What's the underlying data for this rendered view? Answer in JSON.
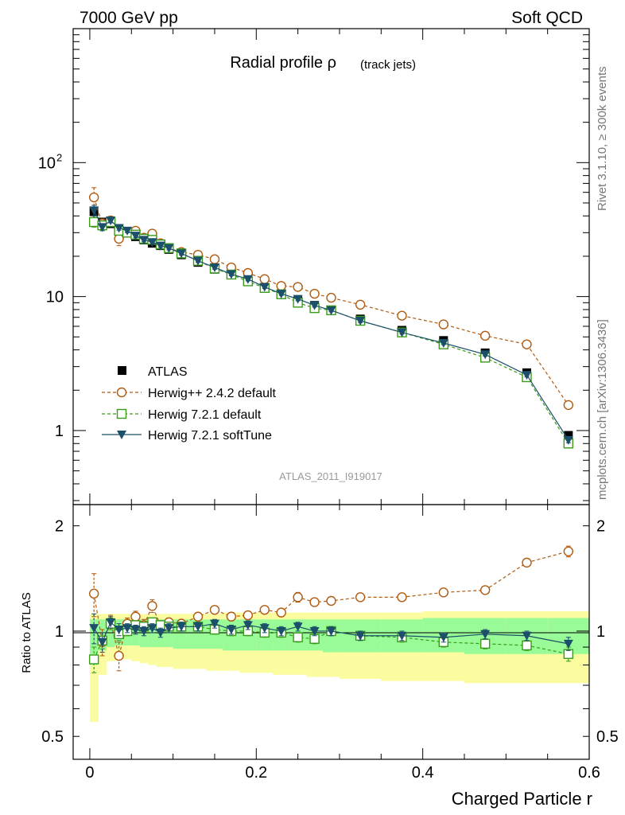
{
  "header": {
    "left_label": "7000 GeV pp",
    "right_label": "Soft QCD"
  },
  "side_labels": {
    "rivet": "Rivet 3.1.10, ≥ 300k events",
    "mcplots": "mcplots.cern.ch [arXiv:1306.3436]"
  },
  "colors": {
    "atlas": "#000000",
    "herwigpp": "#b05a10",
    "herwig721": "#3a9a1a",
    "softtune": "#1c4f6a",
    "band_outer": "#fbfba0",
    "band_inner": "#98fb98"
  },
  "chart_data": [
    {
      "type": "line",
      "panel": "main",
      "title": "Radial profile ρ",
      "title_suffix": "(track jets)",
      "analysis_label": "ATLAS_2011_I919017",
      "xlim": [
        -0.02,
        0.6
      ],
      "ylim": [
        0.28,
        1000
      ],
      "yscale": "log",
      "y_tick_labels": [
        {
          "value": 1,
          "label": "1"
        },
        {
          "value": 10,
          "label": "10"
        },
        {
          "value": 100,
          "label": "10",
          "sup": "2"
        }
      ],
      "legend": [
        "ATLAS",
        "Herwig++ 2.4.2 default",
        "Herwig 7.2.1 default",
        "Herwig 7.2.1 softTune"
      ],
      "x": [
        0.005,
        0.015,
        0.025,
        0.035,
        0.045,
        0.055,
        0.065,
        0.075,
        0.085,
        0.095,
        0.11,
        0.13,
        0.15,
        0.17,
        0.19,
        0.21,
        0.23,
        0.25,
        0.27,
        0.29,
        0.325,
        0.375,
        0.425,
        0.475,
        0.525,
        0.575
      ],
      "series": [
        {
          "name": "ATLAS",
          "style": "square",
          "values": [
            43,
            36,
            35,
            32,
            30,
            28,
            26.5,
            25,
            24,
            22.5,
            20.5,
            18,
            16,
            14.5,
            13,
            11.6,
            10.5,
            9.3,
            8.6,
            7.9,
            6.8,
            5.6,
            4.7,
            3.8,
            2.7,
            0.92
          ],
          "errors": [
            5,
            2,
            1.5,
            1.2,
            1,
            1,
            0.9,
            0.9,
            0.8,
            0.7,
            0.6,
            0.5,
            0.5,
            0.4,
            0.4,
            0.3,
            0.3,
            0.3,
            0.25,
            0.2,
            0.2,
            0.15,
            0.12,
            0.1,
            0.08,
            0.04
          ]
        },
        {
          "name": "Herwig++ 2.4.2 default",
          "style": "circle",
          "values": [
            55,
            35,
            37,
            27,
            30,
            31,
            27.5,
            29.5,
            25,
            23,
            21.5,
            20.5,
            19,
            16.5,
            15,
            13.5,
            12,
            11.8,
            10.5,
            9.8,
            8.7,
            7.2,
            6.2,
            5.1,
            4.4,
            1.55
          ],
          "errors": [
            10,
            3,
            2,
            3,
            1.5,
            1.5,
            1.2,
            1.5,
            1,
            1,
            0.8,
            0.8,
            0.7,
            0.6,
            0.5,
            0.5,
            0.5,
            0.5,
            0.4,
            0.4,
            0.3,
            0.25,
            0.2,
            0.18,
            0.15,
            0.08
          ]
        },
        {
          "name": "Herwig 7.2.1 default",
          "style": "open-square",
          "values": [
            36,
            34,
            36,
            31,
            30,
            29,
            27,
            26.5,
            24.5,
            23,
            21,
            18.5,
            16.2,
            14.6,
            13,
            11.6,
            10.4,
            9,
            8.2,
            7.9,
            6.6,
            5.4,
            4.4,
            3.5,
            2.5,
            0.8
          ],
          "errors": [
            3,
            2,
            1.5,
            1.2,
            1,
            1,
            0.9,
            0.9,
            0.8,
            0.7,
            0.6,
            0.5,
            0.5,
            0.4,
            0.4,
            0.3,
            0.3,
            0.3,
            0.25,
            0.2,
            0.2,
            0.15,
            0.12,
            0.1,
            0.08,
            0.04
          ]
        },
        {
          "name": "Herwig 7.2.1 softTune",
          "style": "triangle-down",
          "values": [
            44,
            33,
            37,
            32.5,
            31,
            28.5,
            26.5,
            25.5,
            24,
            23,
            21,
            18.5,
            16.5,
            14.7,
            13.5,
            11.8,
            10.5,
            9.6,
            8.6,
            7.9,
            6.6,
            5.4,
            4.5,
            3.7,
            2.6,
            0.85
          ],
          "errors": [
            4,
            2,
            1.5,
            1.2,
            1,
            1,
            0.9,
            0.9,
            0.8,
            0.7,
            0.6,
            0.5,
            0.5,
            0.4,
            0.4,
            0.3,
            0.3,
            0.3,
            0.25,
            0.2,
            0.2,
            0.15,
            0.12,
            0.1,
            0.08,
            0.04
          ]
        }
      ]
    },
    {
      "type": "line",
      "panel": "ratio",
      "ylabel": "Ratio to ATLAS",
      "xlabel": "Charged Particle r",
      "xlim": [
        -0.02,
        0.6
      ],
      "ylim": [
        0.43,
        2.3
      ],
      "yscale": "log",
      "y_tick_labels": [
        {
          "value": 0.5,
          "label": "0.5"
        },
        {
          "value": 1,
          "label": "1"
        },
        {
          "value": 2,
          "label": "2"
        }
      ],
      "x_tick_labels": [
        {
          "value": 0,
          "label": "0"
        },
        {
          "value": 0.2,
          "label": "0.2"
        },
        {
          "value": 0.4,
          "label": "0.4"
        },
        {
          "value": 0.6,
          "label": "0.6"
        }
      ],
      "bin_edges": [
        0,
        0.01,
        0.02,
        0.03,
        0.04,
        0.05,
        0.06,
        0.07,
        0.08,
        0.09,
        0.1,
        0.12,
        0.14,
        0.16,
        0.18,
        0.2,
        0.22,
        0.24,
        0.26,
        0.28,
        0.3,
        0.35,
        0.4,
        0.45,
        0.5,
        0.55,
        0.6
      ],
      "band_outer_lo": [
        0.55,
        0.75,
        0.82,
        0.83,
        0.83,
        0.82,
        0.81,
        0.8,
        0.79,
        0.79,
        0.78,
        0.78,
        0.77,
        0.77,
        0.76,
        0.76,
        0.75,
        0.75,
        0.74,
        0.74,
        0.73,
        0.72,
        0.72,
        0.71,
        0.71,
        0.71
      ],
      "band_outer_hi": [
        1.12,
        1.12,
        1.12,
        1.12,
        1.12,
        1.12,
        1.12,
        1.12,
        1.12,
        1.12,
        1.12,
        1.12,
        1.12,
        1.13,
        1.13,
        1.13,
        1.13,
        1.13,
        1.13,
        1.13,
        1.13,
        1.13,
        1.14,
        1.14,
        1.14,
        1.14
      ],
      "band_inner_lo": [
        0.8,
        0.88,
        0.9,
        0.91,
        0.91,
        0.91,
        0.9,
        0.9,
        0.9,
        0.9,
        0.89,
        0.89,
        0.89,
        0.88,
        0.88,
        0.88,
        0.88,
        0.88,
        0.88,
        0.87,
        0.87,
        0.87,
        0.87,
        0.86,
        0.86,
        0.86
      ],
      "band_inner_hi": [
        1.08,
        1.08,
        1.08,
        1.08,
        1.08,
        1.08,
        1.08,
        1.08,
        1.08,
        1.08,
        1.08,
        1.08,
        1.08,
        1.08,
        1.08,
        1.08,
        1.08,
        1.08,
        1.08,
        1.08,
        1.08,
        1.08,
        1.09,
        1.09,
        1.09,
        1.09
      ],
      "x": [
        0.005,
        0.015,
        0.025,
        0.035,
        0.045,
        0.055,
        0.065,
        0.075,
        0.085,
        0.095,
        0.11,
        0.13,
        0.15,
        0.17,
        0.19,
        0.21,
        0.23,
        0.25,
        0.27,
        0.29,
        0.325,
        0.375,
        0.425,
        0.475,
        0.525,
        0.575
      ],
      "series": [
        {
          "name": "Herwig++ 2.4.2 default",
          "style": "circle",
          "values": [
            1.28,
            0.93,
            1.06,
            0.85,
            1.05,
            1.1,
            1.04,
            1.18,
            1.04,
            1.06,
            1.05,
            1.1,
            1.15,
            1.1,
            1.11,
            1.15,
            1.13,
            1.25,
            1.21,
            1.22,
            1.25,
            1.25,
            1.29,
            1.31,
            1.57,
            1.69
          ],
          "errors": [
            0.18,
            0.08,
            0.05,
            0.08,
            0.04,
            0.04,
            0.04,
            0.05,
            0.03,
            0.03,
            0.03,
            0.03,
            0.03,
            0.03,
            0.03,
            0.03,
            0.03,
            0.04,
            0.03,
            0.03,
            0.03,
            0.03,
            0.03,
            0.03,
            0.04,
            0.06
          ]
        },
        {
          "name": "Herwig 7.2.1 default",
          "style": "open-square",
          "values": [
            0.83,
            0.94,
            1.05,
            0.98,
            1.0,
            1.04,
            1.03,
            1.06,
            1.04,
            1.03,
            1.03,
            1.03,
            1.01,
            1.0,
            1.0,
            0.99,
            0.99,
            0.96,
            0.95,
            1.0,
            0.97,
            0.96,
            0.93,
            0.92,
            0.91,
            0.86
          ],
          "errors": [
            0.07,
            0.05,
            0.04,
            0.04,
            0.03,
            0.03,
            0.03,
            0.03,
            0.03,
            0.03,
            0.03,
            0.03,
            0.03,
            0.03,
            0.03,
            0.03,
            0.03,
            0.03,
            0.03,
            0.03,
            0.03,
            0.03,
            0.03,
            0.03,
            0.03,
            0.04
          ]
        },
        {
          "name": "Herwig 7.2.1 softTune",
          "style": "triangle-down",
          "values": [
            1.02,
            0.93,
            1.06,
            1.01,
            1.02,
            1.01,
            1.0,
            1.02,
            0.99,
            1.02,
            1.03,
            1.03,
            1.05,
            1.01,
            1.04,
            1.02,
            1.0,
            1.03,
            1.0,
            1.0,
            0.97,
            0.97,
            0.96,
            0.98,
            0.97,
            0.92
          ],
          "errors": [
            0.1,
            0.06,
            0.04,
            0.04,
            0.03,
            0.03,
            0.03,
            0.03,
            0.03,
            0.03,
            0.03,
            0.03,
            0.03,
            0.03,
            0.03,
            0.03,
            0.03,
            0.03,
            0.03,
            0.03,
            0.03,
            0.03,
            0.03,
            0.03,
            0.03,
            0.04
          ]
        }
      ]
    }
  ]
}
